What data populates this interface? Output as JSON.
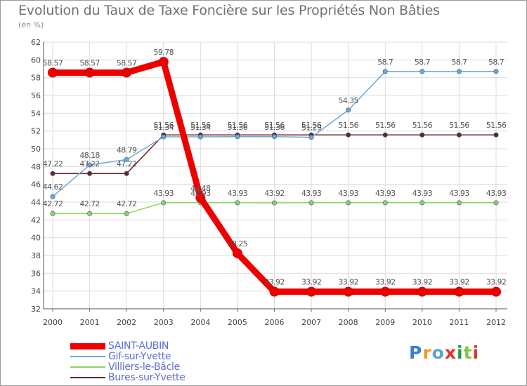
{
  "title": "Evolution du Taux de Taxe Foncière sur les Propriétés Non Bâties",
  "subtitle": "(en %)",
  "logo_text": "Proxiti",
  "chart_data": {
    "type": "line",
    "title": "Evolution du Taux de Taxe Foncière sur les Propriétés Non Bâties",
    "ylabel": "(en %)",
    "xlabel": "",
    "ylim": [
      32,
      62
    ],
    "yticks": [
      32,
      34,
      36,
      38,
      40,
      42,
      44,
      46,
      48,
      50,
      52,
      54,
      56,
      58,
      60,
      62
    ],
    "categories": [
      "2000",
      "2001",
      "2002",
      "2003",
      "2004",
      "2005",
      "2006",
      "2007",
      "2008",
      "2009",
      "2010",
      "2011",
      "2012"
    ],
    "grid": true,
    "series": [
      {
        "name": "SAINT-AUBIN",
        "color": "#ee0000",
        "values": [
          58.57,
          58.57,
          58.57,
          59.78,
          44.48,
          38.25,
          33.92,
          33.92,
          33.92,
          33.92,
          33.92,
          33.92,
          33.92
        ],
        "labels": [
          "58.57",
          "58.57",
          "58.57",
          "59.78",
          "44.48",
          "38.25",
          "33.92",
          "33.92",
          "33.92",
          "33.92",
          "33.92",
          "33.92",
          "33.92"
        ]
      },
      {
        "name": "Gif-sur-Yvette",
        "color": "#6fa8d6",
        "values": [
          44.62,
          48.18,
          48.79,
          51.34,
          51.34,
          51.36,
          51.36,
          51.29,
          54.35,
          58.7,
          58.7,
          58.7,
          58.7
        ],
        "labels": [
          "44.62",
          "48.18",
          "48.79",
          "51.34",
          "51.34",
          "51.36",
          "51.36",
          "51.29",
          "54.35",
          "58.7",
          "58.7",
          "58.7",
          "58.7"
        ]
      },
      {
        "name": "Villiers-le-Bâcle",
        "color": "#8fd45f",
        "values": [
          42.72,
          42.72,
          42.72,
          43.93,
          43.93,
          43.93,
          43.92,
          43.93,
          43.93,
          43.93,
          43.93,
          43.93,
          43.93
        ],
        "labels": [
          "42.72",
          "42.72",
          "42.72",
          "43.93",
          "43.93",
          "43.93",
          "43.92",
          "43.93",
          "43.93",
          "43.93",
          "43.93",
          "43.93",
          "43.93"
        ]
      },
      {
        "name": "Bures-sur-Yvette",
        "color": "#6a2323",
        "values": [
          47.22,
          47.22,
          47.22,
          51.56,
          51.56,
          51.56,
          51.56,
          51.56,
          51.56,
          51.56,
          51.56,
          51.56,
          51.56
        ],
        "labels": [
          "47.22",
          "47.22",
          "47.22",
          "51.56",
          "51.56",
          "51.56",
          "51.56",
          "51.56",
          "51.56",
          "51.56",
          "51.56",
          "51.56",
          "51.56"
        ]
      }
    ]
  }
}
